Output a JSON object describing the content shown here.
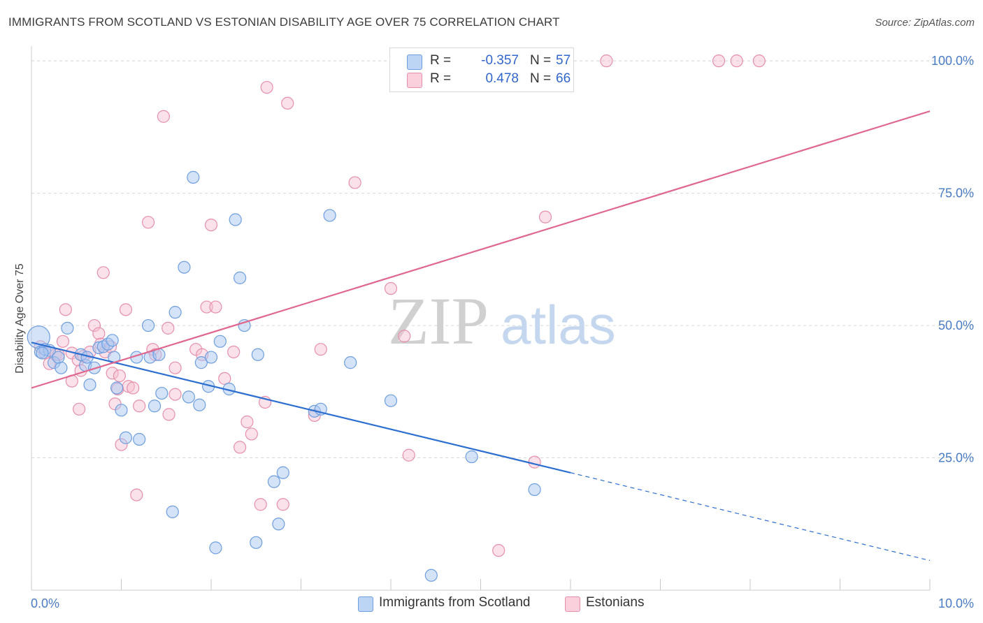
{
  "header": {
    "title": "IMMIGRANTS FROM SCOTLAND VS ESTONIAN DISABILITY AGE OVER 75 CORRELATION CHART",
    "source": "Source: ZipAtlas.com"
  },
  "watermark": {
    "part1": "ZIP",
    "part2": "atlas"
  },
  "legend": {
    "rows": [
      {
        "r_label": "R =",
        "r_value": "-0.357",
        "n_label": "N =",
        "n_value": "57"
      },
      {
        "r_label": "R =",
        "r_value": "0.478",
        "n_label": "N =",
        "n_value": "66"
      }
    ]
  },
  "bottom_legend": {
    "items": [
      {
        "label": "Immigrants from Scotland"
      },
      {
        "label": "Estonians"
      }
    ]
  },
  "colors": {
    "blue_fill": "#a9c8f2",
    "blue_stroke": "#6e9ee0",
    "blue_line": "#2d6fd0",
    "pink_fill": "#f6bfd0",
    "pink_stroke": "#e78fab",
    "pink_line": "#e0678e",
    "grid": "#d8d8d8",
    "axis_text": "#4a7cc4"
  },
  "chart_data": {
    "type": "scatter",
    "title": "IMMIGRANTS FROM SCOTLAND VS ESTONIAN DISABILITY AGE OVER 75 CORRELATION CHART",
    "xlabel": "",
    "ylabel": "Disability Age Over 75",
    "xlim": [
      0,
      10
    ],
    "ylim": [
      0,
      102
    ],
    "x_tick_labels": [
      "0.0%",
      "10.0%"
    ],
    "y_tick_labels": [
      "25.0%",
      "50.0%",
      "75.0%",
      "100.0%"
    ],
    "y_tick_values": [
      25,
      50,
      75,
      100
    ],
    "grid": true,
    "legend_position": "top-center",
    "series": [
      {
        "name": "Immigrants from Scotland",
        "color": "#a9c8f2",
        "R": -0.357,
        "N": 57,
        "trend": {
          "x0": 0,
          "y0": 46.8,
          "x1": 6.0,
          "y1": 22.2,
          "dashed_to_x": 10.0,
          "dashed_to_y": 5.6
        },
        "points": [
          [
            0.08,
            47.8
          ],
          [
            0.1,
            45.0
          ],
          [
            0.15,
            45.5
          ],
          [
            0.2,
            45.3
          ],
          [
            0.25,
            43.0
          ],
          [
            0.33,
            42.0
          ],
          [
            0.4,
            49.5
          ],
          [
            0.55,
            44.5
          ],
          [
            0.6,
            42.5
          ],
          [
            0.62,
            44.0
          ],
          [
            0.65,
            38.8
          ],
          [
            0.7,
            42.0
          ],
          [
            0.75,
            45.8
          ],
          [
            0.8,
            46.0
          ],
          [
            0.85,
            46.5
          ],
          [
            0.9,
            47.2
          ],
          [
            0.92,
            44.0
          ],
          [
            0.95,
            38.2
          ],
          [
            1.0,
            34.0
          ],
          [
            1.05,
            28.8
          ],
          [
            1.2,
            28.5
          ],
          [
            1.17,
            44.0
          ],
          [
            1.3,
            50.0
          ],
          [
            1.32,
            44.0
          ],
          [
            1.37,
            34.8
          ],
          [
            1.42,
            44.5
          ],
          [
            1.45,
            37.2
          ],
          [
            1.57,
            14.8
          ],
          [
            1.6,
            52.5
          ],
          [
            1.7,
            61.0
          ],
          [
            1.75,
            36.5
          ],
          [
            1.8,
            78.0
          ],
          [
            1.87,
            35.0
          ],
          [
            1.89,
            43.0
          ],
          [
            1.97,
            38.5
          ],
          [
            2.0,
            44.0
          ],
          [
            2.05,
            8.0
          ],
          [
            2.1,
            47.0
          ],
          [
            2.2,
            38.0
          ],
          [
            2.27,
            70.0
          ],
          [
            2.32,
            59.0
          ],
          [
            2.37,
            50.0
          ],
          [
            2.5,
            9.0
          ],
          [
            2.52,
            44.5
          ],
          [
            2.7,
            20.5
          ],
          [
            2.75,
            12.5
          ],
          [
            2.8,
            22.2
          ],
          [
            3.15,
            33.8
          ],
          [
            3.22,
            34.2
          ],
          [
            3.32,
            70.8
          ],
          [
            3.55,
            43.0
          ],
          [
            4.0,
            35.8
          ],
          [
            4.45,
            2.8
          ],
          [
            4.9,
            25.2
          ],
          [
            5.6,
            19.0
          ],
          [
            0.12,
            44.8
          ],
          [
            0.3,
            44.0
          ]
        ]
      },
      {
        "name": "Estonians",
        "color": "#f6bfd0",
        "R": 0.478,
        "N": 66,
        "trend": {
          "x0": 0,
          "y0": 38.2,
          "x1": 10.0,
          "y1": 90.5
        },
        "points": [
          [
            0.1,
            46.0
          ],
          [
            0.15,
            44.8
          ],
          [
            0.2,
            42.8
          ],
          [
            0.27,
            44.5
          ],
          [
            0.3,
            44.5
          ],
          [
            0.35,
            47.0
          ],
          [
            0.38,
            53.0
          ],
          [
            0.45,
            44.8
          ],
          [
            0.45,
            39.5
          ],
          [
            0.52,
            43.5
          ],
          [
            0.53,
            34.2
          ],
          [
            0.55,
            41.5
          ],
          [
            0.58,
            44.2
          ],
          [
            0.65,
            45.0
          ],
          [
            0.7,
            50.0
          ],
          [
            0.75,
            48.5
          ],
          [
            0.77,
            46.5
          ],
          [
            0.8,
            60.0
          ],
          [
            0.82,
            45.0
          ],
          [
            0.88,
            46.0
          ],
          [
            0.9,
            41.0
          ],
          [
            0.93,
            35.2
          ],
          [
            0.96,
            38.0
          ],
          [
            0.98,
            40.5
          ],
          [
            1.0,
            27.5
          ],
          [
            1.05,
            53.0
          ],
          [
            1.08,
            38.5
          ],
          [
            1.13,
            38.2
          ],
          [
            1.17,
            18.0
          ],
          [
            1.2,
            34.8
          ],
          [
            1.3,
            69.5
          ],
          [
            1.35,
            45.5
          ],
          [
            1.38,
            44.5
          ],
          [
            1.47,
            89.5
          ],
          [
            1.52,
            49.5
          ],
          [
            1.53,
            33.2
          ],
          [
            1.6,
            42.0
          ],
          [
            1.6,
            37.0
          ],
          [
            1.83,
            45.5
          ],
          [
            1.9,
            44.5
          ],
          [
            1.95,
            53.5
          ],
          [
            2.0,
            69.0
          ],
          [
            2.05,
            53.5
          ],
          [
            2.15,
            40.0
          ],
          [
            2.25,
            45.0
          ],
          [
            2.32,
            27.0
          ],
          [
            2.4,
            31.8
          ],
          [
            2.45,
            29.5
          ],
          [
            2.55,
            16.2
          ],
          [
            2.6,
            35.5
          ],
          [
            2.62,
            95.0
          ],
          [
            2.8,
            16.2
          ],
          [
            2.85,
            92.0
          ],
          [
            3.15,
            33.0
          ],
          [
            3.22,
            45.5
          ],
          [
            3.6,
            77.0
          ],
          [
            4.0,
            57.0
          ],
          [
            4.15,
            48.0
          ],
          [
            4.2,
            25.5
          ],
          [
            5.2,
            7.5
          ],
          [
            5.6,
            24.2
          ],
          [
            5.72,
            70.5
          ],
          [
            6.4,
            100.0
          ],
          [
            7.65,
            100.0
          ],
          [
            7.85,
            100.0
          ],
          [
            8.1,
            100.0
          ]
        ]
      }
    ]
  }
}
